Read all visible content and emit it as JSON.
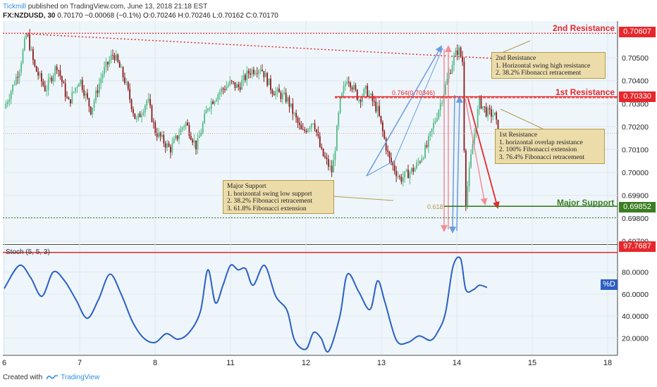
{
  "header": {
    "brand": "Tickmill",
    "published": "published on TradingView.com, June 13, 2018 21:18 EST",
    "symbol": "FX:NZDUSD, 30",
    "last": "0.70170",
    "change": "−0.00068 (−0.1%)",
    "ohlc": "O:0.70246 H:0.70246 L:0.70162 C:0.70170"
  },
  "footer": {
    "created_with": "Created with",
    "tradingview": "TradingView"
  },
  "levels": {
    "resistance2": {
      "label": "2nd Resistance",
      "price": "0.70607",
      "color": "#e8262b"
    },
    "resistance1": {
      "label": "1st Resistance",
      "price": "0.70330",
      "color": "#e8262b"
    },
    "support": {
      "label": "Major Support",
      "price": "0.69852",
      "color": "#3b7d22"
    },
    "stoch_level": {
      "price": "97.7687",
      "color": "#e8262b"
    }
  },
  "notes": {
    "res2": {
      "title": "2nd Resistance",
      "lines": [
        "1. Horizontal swing high resistance",
        "2. 38.2% Fibonacci retracement"
      ]
    },
    "res1": {
      "title": "1st Resistance",
      "lines": [
        "1. horizontal overlap resistance",
        "2. 100% Fibonacci extension",
        "3. 76.4% Fibonacci retracement"
      ]
    },
    "support": {
      "title": "Major Support",
      "lines": [
        "1. horizontal swing low support",
        "2. 38.2% Fibonacci retracement",
        "3. 61.8% Fibonacci extension"
      ]
    }
  },
  "fib_labels": {
    "upper": "0.764(0.70346)",
    "lower": "0.618"
  },
  "indicator": {
    "name": "Stoch (5, 5, 3)",
    "series_label": "%D",
    "color": "#2c5fc4"
  },
  "colors": {
    "bull": "#53b987",
    "bear": "#8c1a1a",
    "fib_blue": "#6b9be0",
    "fib_red": "#f08f96"
  },
  "chart_data": {
    "type": "candlestick",
    "symbol": "FX:NZDUSD",
    "timeframe": "30",
    "x_tick_labels": [
      "6",
      "7",
      "8",
      "11",
      "12",
      "13",
      "14",
      "15",
      "18"
    ],
    "price_axis_ticks": [
      "0.70500",
      "0.70400",
      "0.70300",
      "0.70200",
      "0.70100",
      "0.70000",
      "0.69900",
      "0.69800",
      "0.69700"
    ],
    "ylim": [
      0.6969,
      0.7066
    ],
    "price_path": [
      [
        6.0,
        0.7028
      ],
      [
        6.2,
        0.7045
      ],
      [
        6.3,
        0.7061
      ],
      [
        6.4,
        0.7046
      ],
      [
        6.55,
        0.7036
      ],
      [
        6.7,
        0.7047
      ],
      [
        6.85,
        0.703
      ],
      [
        7.0,
        0.7041
      ],
      [
        7.15,
        0.7027
      ],
      [
        7.3,
        0.7043
      ],
      [
        7.45,
        0.7052
      ],
      [
        7.6,
        0.704
      ],
      [
        7.75,
        0.7022
      ],
      [
        7.9,
        0.7032
      ],
      [
        8.0,
        0.7018
      ],
      [
        8.2,
        0.701
      ],
      [
        8.4,
        0.7022
      ],
      [
        8.55,
        0.7011
      ],
      [
        8.7,
        0.7029
      ],
      [
        8.85,
        0.7035
      ],
      [
        9.0,
        0.7039
      ],
      [
        9.1,
        0.7037
      ],
      [
        9.25,
        0.7044
      ],
      [
        9.4,
        0.7046
      ],
      [
        9.55,
        0.7036
      ],
      [
        9.75,
        0.7032
      ],
      [
        9.95,
        0.7017
      ],
      [
        10.1,
        0.7023
      ],
      [
        10.2,
        0.7009
      ],
      [
        10.35,
        0.7
      ],
      [
        10.45,
        0.703
      ],
      [
        10.55,
        0.7042
      ],
      [
        10.7,
        0.7032
      ],
      [
        10.8,
        0.7036
      ],
      [
        10.95,
        0.7027
      ],
      [
        11.1,
        0.7006
      ],
      [
        11.25,
        0.6997
      ],
      [
        11.45,
        0.7002
      ],
      [
        11.6,
        0.7011
      ],
      [
        11.8,
        0.7032
      ],
      [
        11.95,
        0.7049
      ],
      [
        12.02,
        0.7054
      ],
      [
        12.08,
        0.7048
      ],
      [
        12.11,
        0.6985
      ],
      [
        12.2,
        0.701
      ],
      [
        12.3,
        0.7031
      ],
      [
        12.4,
        0.7026
      ],
      [
        12.5,
        0.7025
      ],
      [
        12.55,
        0.7017
      ]
    ],
    "annotated_levels": [
      {
        "name": "2nd Resistance",
        "value": 0.70607
      },
      {
        "name": "1st Resistance",
        "value": 0.7033
      },
      {
        "name": "Major Support",
        "value": 0.69852
      }
    ],
    "stochastic": {
      "name": "Stoch (5, 5, 3)",
      "series": "%D",
      "ticks": [
        "80.0000",
        "60.0000",
        "40.0000",
        "20.0000"
      ],
      "ylim": [
        5,
        104
      ],
      "level_line": 97.7687,
      "values": [
        [
          6.0,
          65
        ],
        [
          6.2,
          86
        ],
        [
          6.35,
          75
        ],
        [
          6.5,
          58
        ],
        [
          6.65,
          80
        ],
        [
          6.8,
          72
        ],
        [
          6.95,
          55
        ],
        [
          7.1,
          38
        ],
        [
          7.25,
          55
        ],
        [
          7.4,
          78
        ],
        [
          7.55,
          60
        ],
        [
          7.7,
          35
        ],
        [
          7.85,
          20
        ],
        [
          8.0,
          16
        ],
        [
          8.15,
          24
        ],
        [
          8.3,
          19
        ],
        [
          8.45,
          25
        ],
        [
          8.6,
          44
        ],
        [
          8.7,
          82
        ],
        [
          8.8,
          52
        ],
        [
          8.9,
          68
        ],
        [
          9.0,
          86
        ],
        [
          9.1,
          82
        ],
        [
          9.2,
          83
        ],
        [
          9.3,
          68
        ],
        [
          9.45,
          86
        ],
        [
          9.6,
          58
        ],
        [
          9.75,
          45
        ],
        [
          9.85,
          18
        ],
        [
          10.0,
          10
        ],
        [
          10.1,
          25
        ],
        [
          10.2,
          20
        ],
        [
          10.3,
          8
        ],
        [
          10.45,
          40
        ],
        [
          10.55,
          78
        ],
        [
          10.7,
          62
        ],
        [
          10.85,
          46
        ],
        [
          10.95,
          72
        ],
        [
          11.05,
          52
        ],
        [
          11.2,
          18
        ],
        [
          11.35,
          16
        ],
        [
          11.5,
          22
        ],
        [
          11.65,
          18
        ],
        [
          11.75,
          26
        ],
        [
          11.85,
          43
        ],
        [
          11.95,
          85
        ],
        [
          12.05,
          92
        ],
        [
          12.12,
          64
        ],
        [
          12.22,
          64
        ],
        [
          12.3,
          68
        ],
        [
          12.4,
          66
        ]
      ]
    }
  }
}
